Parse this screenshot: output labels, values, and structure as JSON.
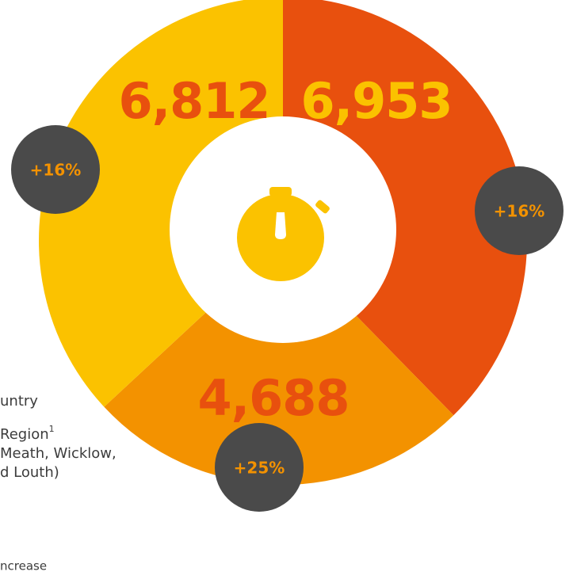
{
  "chart_data": {
    "type": "pie",
    "values": [
      6953,
      4688,
      6812
    ],
    "value_labels": [
      "6,953",
      "4,688",
      "6,812"
    ],
    "colors": [
      "#e8500e",
      "#f39200",
      "#fbc200"
    ],
    "label_colors": [
      "#fbc200",
      "#e8500e",
      "#e8500e"
    ],
    "changes": [
      16,
      25,
      16
    ],
    "change_labels": [
      "+16%",
      "+25%",
      "+16%"
    ],
    "notes": [
      "untry",
      "Region",
      "Meath, Wicklow,",
      "d Louth)",
      "ncrease"
    ],
    "note_superscript": "1"
  }
}
